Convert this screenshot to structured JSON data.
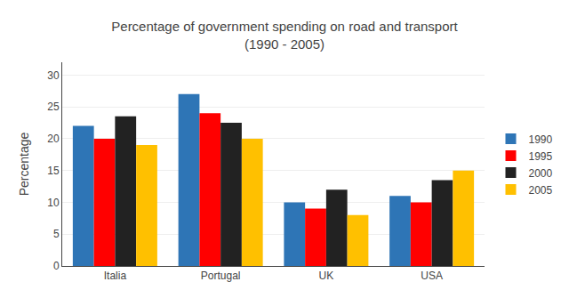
{
  "chart_data": {
    "type": "bar",
    "title": "Percentage of government spending on road and transport\n(1990 - 2005)",
    "ylabel": "Percentage",
    "categories": [
      "Italia",
      "Portugal",
      "UK",
      "USA"
    ],
    "series": [
      {
        "name": "1990",
        "color": "#2E75B6",
        "values": [
          22,
          27,
          10,
          11
        ]
      },
      {
        "name": "1995",
        "color": "#FF0000",
        "values": [
          20,
          24,
          9,
          10
        ]
      },
      {
        "name": "2000",
        "color": "#222222",
        "values": [
          23.5,
          22.5,
          12,
          13.5
        ]
      },
      {
        "name": "2005",
        "color": "#FFC000",
        "values": [
          19,
          20,
          8,
          15
        ]
      }
    ],
    "ylim": [
      0,
      32
    ],
    "yticks": [
      0,
      5,
      10,
      15,
      20,
      25,
      30
    ],
    "grid": true,
    "legend": "right"
  }
}
